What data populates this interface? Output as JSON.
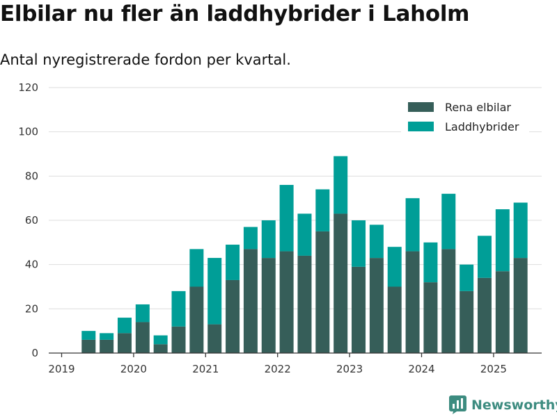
{
  "header": {
    "title": "Elbilar nu fler än laddhybrider i Laholm",
    "subtitle": "Antal nyregistrerade fordon per kvartal."
  },
  "brand": {
    "name": "Newsworthy",
    "icon": "bar-chart-logo-icon",
    "color": "#3d8c80"
  },
  "colors": {
    "elbilar": "#365e59",
    "laddhybrider": "#009e97",
    "grid": "#dddddd",
    "axis": "#333333"
  },
  "chart_data": {
    "type": "bar",
    "stacked": true,
    "title": "Elbilar nu fler än laddhybrider i Laholm",
    "subtitle": "Antal nyregistrerade fordon per kvartal.",
    "xlabel": "",
    "ylabel": "",
    "ylim": [
      0,
      120
    ],
    "yticks": [
      0,
      20,
      40,
      60,
      80,
      100,
      120
    ],
    "xtick_labels": [
      "2019",
      "2020",
      "2021",
      "2022",
      "2023",
      "2024",
      "2025"
    ],
    "categories": [
      "2019 Q2",
      "2019 Q3",
      "2019 Q4",
      "2020 Q1",
      "2020 Q2",
      "2020 Q3",
      "2020 Q4",
      "2021 Q1",
      "2021 Q2",
      "2021 Q3",
      "2021 Q4",
      "2022 Q1",
      "2022 Q2",
      "2022 Q3",
      "2022 Q4",
      "2023 Q1",
      "2023 Q2",
      "2023 Q3",
      "2023 Q4",
      "2024 Q1",
      "2024 Q2",
      "2024 Q3",
      "2024 Q4",
      "2025 Q1",
      "2025 Q2"
    ],
    "series": [
      {
        "name": "Rena elbilar",
        "color": "#365e59",
        "values": [
          6,
          6,
          9,
          14,
          4,
          12,
          30,
          13,
          33,
          47,
          43,
          46,
          44,
          55,
          63,
          39,
          43,
          30,
          46,
          32,
          47,
          28,
          34,
          37,
          43
        ]
      },
      {
        "name": "Laddhybrider",
        "color": "#009e97",
        "values": [
          4,
          3,
          7,
          8,
          4,
          16,
          17,
          30,
          16,
          10,
          17,
          30,
          19,
          19,
          26,
          21,
          15,
          18,
          24,
          18,
          25,
          12,
          19,
          28,
          25
        ]
      }
    ],
    "grid": "horizontal",
    "legend": "top-right"
  }
}
